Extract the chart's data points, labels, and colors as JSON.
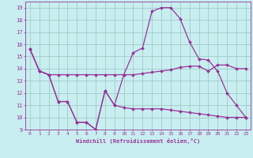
{
  "xlabel": "Windchill (Refroidissement éolien,°C)",
  "background_color": "#c8eef0",
  "grid_color": "#a0ccc8",
  "line_color": "#993399",
  "xlim": [
    -0.5,
    23.5
  ],
  "ylim": [
    9,
    19.5
  ],
  "yticks": [
    9,
    10,
    11,
    12,
    13,
    14,
    15,
    16,
    17,
    18,
    19
  ],
  "xticks": [
    0,
    1,
    2,
    3,
    4,
    5,
    6,
    7,
    8,
    9,
    10,
    11,
    12,
    13,
    14,
    15,
    16,
    17,
    18,
    19,
    20,
    21,
    22,
    23
  ],
  "series1_x": [
    0,
    1,
    2,
    3,
    4,
    5,
    6,
    7,
    8,
    9,
    10,
    11,
    12,
    13,
    14,
    15,
    16,
    17,
    18,
    19,
    20,
    21,
    22,
    23
  ],
  "series1_y": [
    15.6,
    13.8,
    13.5,
    13.5,
    13.5,
    13.5,
    13.5,
    13.5,
    13.5,
    13.5,
    13.5,
    13.5,
    13.6,
    13.7,
    13.8,
    13.9,
    14.1,
    14.2,
    14.2,
    13.8,
    14.3,
    14.3,
    14.0,
    14.0
  ],
  "series2_x": [
    0,
    1,
    2,
    3,
    4,
    5,
    6,
    7,
    8,
    9,
    10,
    11,
    12,
    13,
    14,
    15,
    16,
    17,
    18,
    19,
    20,
    21,
    22,
    23
  ],
  "series2_y": [
    15.6,
    13.8,
    13.5,
    11.3,
    11.3,
    9.6,
    9.6,
    9.0,
    12.2,
    11.0,
    13.5,
    15.3,
    15.7,
    18.7,
    19.0,
    19.0,
    18.1,
    16.2,
    14.8,
    14.7,
    13.8,
    12.0,
    11.0,
    10.0
  ],
  "series3_x": [
    0,
    1,
    2,
    3,
    4,
    5,
    6,
    7,
    8,
    9,
    10,
    11,
    12,
    13,
    14,
    15,
    16,
    17,
    18,
    19,
    20,
    21,
    22,
    23
  ],
  "series3_y": [
    15.6,
    13.8,
    13.5,
    11.3,
    11.3,
    9.6,
    9.6,
    9.0,
    12.2,
    11.0,
    10.8,
    10.7,
    10.7,
    10.7,
    10.7,
    10.6,
    10.5,
    10.4,
    10.3,
    10.2,
    10.1,
    10.0,
    10.0,
    10.0
  ]
}
